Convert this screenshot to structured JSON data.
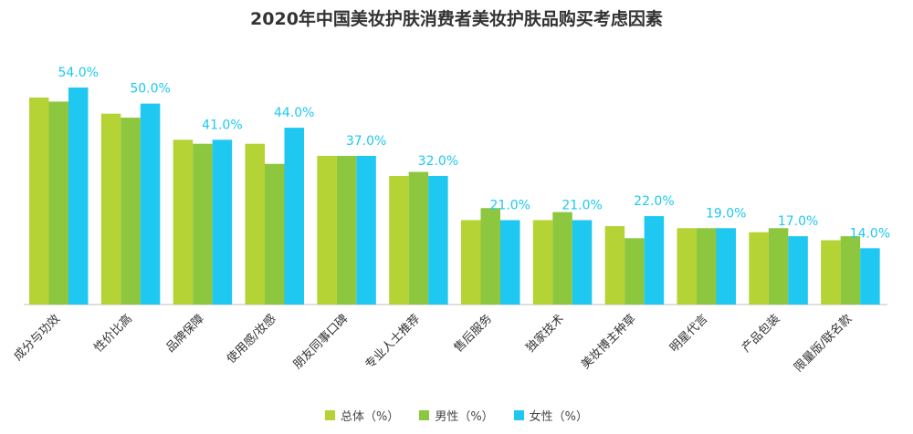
{
  "chart_data": {
    "type": "bar",
    "title": "2020年中国美妆护肤消费者美妆护肤品购买考虑因素",
    "categories": [
      "成分与功效",
      "性价比高",
      "品牌保障",
      "使用感/妆感",
      "朋友同事口碑",
      "专业人士推荐",
      "售后服务",
      "独家技术",
      "美妆博主种草",
      "明星代言",
      "产品包装",
      "限量版/联名款"
    ],
    "series": [
      {
        "name": "总体（%）",
        "color": "#B5D334",
        "values": [
          51.5,
          47.5,
          41.0,
          40.0,
          37.0,
          32.0,
          21.0,
          21.0,
          19.5,
          19.0,
          18.0,
          16.0
        ]
      },
      {
        "name": "男性（%）",
        "color": "#8DC63F",
        "values": [
          50.5,
          46.5,
          40.0,
          35.0,
          37.0,
          33.0,
          24.0,
          23.0,
          16.5,
          19.0,
          19.0,
          17.0
        ]
      },
      {
        "name": "女性（%）",
        "color": "#1EC8F0",
        "values": [
          54.0,
          50.0,
          41.0,
          44.0,
          37.0,
          32.0,
          21.0,
          21.0,
          22.0,
          19.0,
          17.0,
          14.0
        ]
      }
    ],
    "data_labels": [
      "54.0%",
      "50.0%",
      "41.0%",
      "44.0%",
      "37.0%",
      "32.0%",
      "21.0%",
      "21.0%",
      "22.0%",
      "19.0%",
      "17.0%",
      "14.0%"
    ],
    "label_color": "#1EC8F0",
    "ylim": [
      0,
      60
    ],
    "grid": false,
    "legend_position": "bottom"
  }
}
